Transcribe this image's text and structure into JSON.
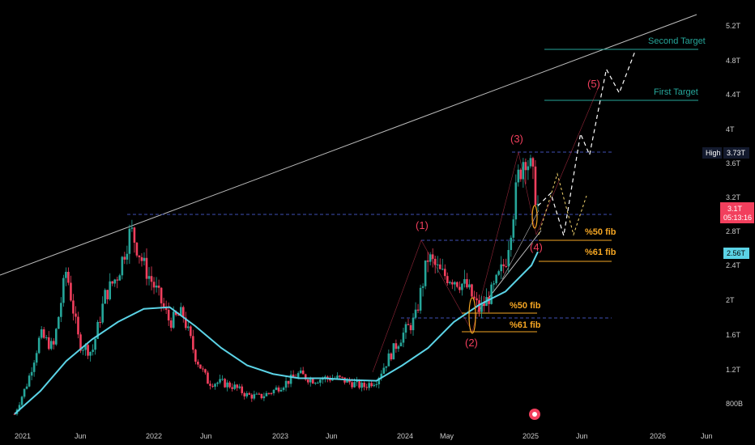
{
  "chart_data": {
    "type": "candlestick",
    "y_axis": {
      "ticks": [
        "5.2T",
        "4.8T",
        "4.4T",
        "4T",
        "3.6T",
        "3.2T",
        "2.8T",
        "2.4T",
        "2T",
        "1.6T",
        "1.2T",
        "800B"
      ]
    },
    "x_axis": {
      "ticks": [
        "2021",
        "Jun",
        "2022",
        "Jun",
        "2023",
        "Jun",
        "2024",
        "May",
        "2025",
        "Jun",
        "2026",
        "Jun"
      ]
    },
    "price_label": {
      "value": "3.1T",
      "countdown": "05:13:16",
      "color": "#f23f5d"
    },
    "high_label": {
      "tag": "High",
      "value": "3.73T"
    },
    "ma_label": {
      "value": "2.56T",
      "color": "#5bd3e6"
    },
    "wave_labels": [
      "(1)",
      "(2)",
      "(3)",
      "(4)",
      "(5)"
    ],
    "fib_labels": {
      "upper_50": "%50 fib",
      "upper_61": "%61 fib",
      "lower_50": "%50 fib",
      "lower_61": "%61 fib"
    },
    "targets": {
      "first": "First Target",
      "second": "Second Target"
    },
    "colors": {
      "up": "#26a69a",
      "down": "#f23f5d",
      "ma": "#5bd3e6",
      "fib": "#f5a623",
      "level": "#3f51b5"
    },
    "series": [
      {
        "name": "price",
        "points": [
          [
            2021.0,
            0.68
          ],
          [
            2021.1,
            1.05
          ],
          [
            2021.2,
            1.6
          ],
          [
            2021.3,
            1.45
          ],
          [
            2021.4,
            2.35
          ],
          [
            2021.5,
            1.5
          ],
          [
            2021.6,
            1.4
          ],
          [
            2021.7,
            2.05
          ],
          [
            2021.8,
            2.3
          ],
          [
            2021.9,
            2.82
          ],
          [
            2022.0,
            2.4
          ],
          [
            2022.1,
            2.1
          ],
          [
            2022.2,
            1.75
          ],
          [
            2022.3,
            1.85
          ],
          [
            2022.4,
            1.35
          ],
          [
            2022.5,
            1.05
          ],
          [
            2022.6,
            1.05
          ],
          [
            2022.7,
            1.0
          ],
          [
            2022.8,
            0.9
          ],
          [
            2022.9,
            0.88
          ],
          [
            2023.0,
            0.95
          ],
          [
            2023.1,
            1.05
          ],
          [
            2023.2,
            1.15
          ],
          [
            2023.3,
            1.08
          ],
          [
            2023.4,
            1.1
          ],
          [
            2023.5,
            1.1
          ],
          [
            2023.6,
            1.05
          ],
          [
            2023.7,
            1.0
          ],
          [
            2023.8,
            1.08
          ],
          [
            2023.9,
            1.35
          ],
          [
            2024.0,
            1.6
          ],
          [
            2024.1,
            1.78
          ],
          [
            2024.2,
            2.5
          ],
          [
            2024.3,
            2.3
          ],
          [
            2024.4,
            2.25
          ],
          [
            2024.5,
            2.15
          ],
          [
            2024.6,
            1.88
          ],
          [
            2024.7,
            2.1
          ],
          [
            2024.8,
            2.45
          ],
          [
            2024.9,
            3.45
          ],
          [
            2024.95,
            3.73
          ],
          [
            2025.0,
            3.5
          ],
          [
            2025.05,
            3.1
          ]
        ]
      },
      {
        "name": "ma",
        "points": [
          [
            2021.0,
            0.68
          ],
          [
            2021.2,
            0.95
          ],
          [
            2021.4,
            1.3
          ],
          [
            2021.6,
            1.55
          ],
          [
            2021.8,
            1.75
          ],
          [
            2022.0,
            1.9
          ],
          [
            2022.2,
            1.92
          ],
          [
            2022.4,
            1.7
          ],
          [
            2022.6,
            1.45
          ],
          [
            2022.8,
            1.25
          ],
          [
            2023.0,
            1.15
          ],
          [
            2023.2,
            1.1
          ],
          [
            2023.4,
            1.1
          ],
          [
            2023.6,
            1.08
          ],
          [
            2023.8,
            1.07
          ],
          [
            2024.0,
            1.25
          ],
          [
            2024.2,
            1.45
          ],
          [
            2024.4,
            1.75
          ],
          [
            2024.6,
            1.95
          ],
          [
            2024.8,
            2.1
          ],
          [
            2025.0,
            2.4
          ],
          [
            2025.05,
            2.56
          ]
        ]
      },
      {
        "name": "projection",
        "points": [
          [
            2025.05,
            3.1
          ],
          [
            2025.15,
            3.25
          ],
          [
            2025.25,
            2.75
          ],
          [
            2025.38,
            3.95
          ],
          [
            2025.45,
            3.7
          ],
          [
            2025.58,
            4.7
          ],
          [
            2025.68,
            4.42
          ],
          [
            2025.8,
            4.9
          ]
        ]
      }
    ],
    "levels": {
      "high": 3.73,
      "resistance_2022": 2.97,
      "wave1": 2.7,
      "lower_support": 1.83,
      "fib_upper_50": 2.71,
      "fib_upper_61": 2.48,
      "fib_lower_50": 1.88,
      "fib_lower_61": 1.7,
      "first_target": 4.35,
      "second_target": 4.92
    }
  }
}
